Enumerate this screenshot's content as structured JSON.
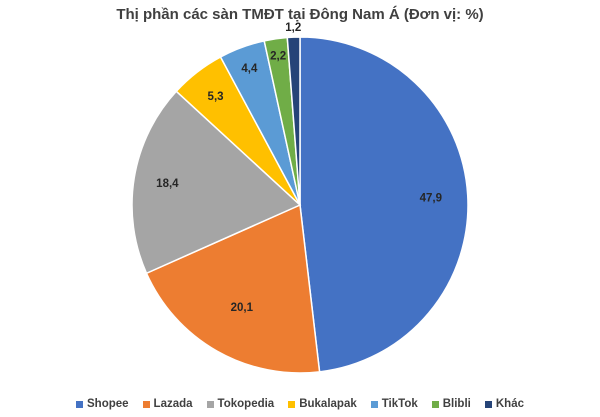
{
  "chart_data": {
    "type": "pie",
    "title": "Thị phần các sàn TMĐT tại Đông Nam Á (Đơn vị: %)",
    "categories": [
      "Shopee",
      "Lazada",
      "Tokopedia",
      "Bukalapak",
      "TikTok",
      "Blibli",
      "Khác"
    ],
    "values": [
      47.9,
      20.1,
      18.4,
      5.3,
      4.4,
      2.2,
      1.2
    ],
    "value_labels": [
      "47,9",
      "20,1",
      "18,4",
      "5,3",
      "4,4",
      "2,2",
      "1,2"
    ],
    "colors": [
      "#4472C4",
      "#ED7D31",
      "#A5A5A5",
      "#FFC000",
      "#5B9BD5",
      "#70AD47",
      "#264478"
    ],
    "start": "12 o'clock",
    "direction": "clockwise",
    "legend_position": "bottom"
  }
}
